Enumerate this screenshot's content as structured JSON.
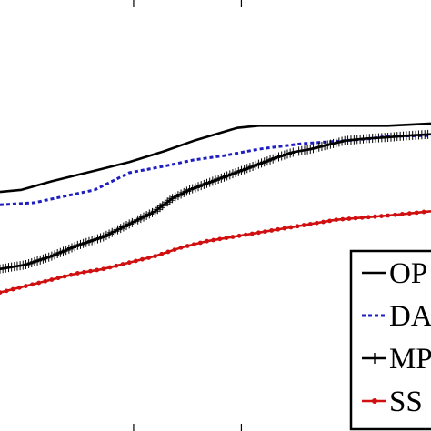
{
  "chart_data": {
    "type": "line",
    "title": "",
    "xlabel": "",
    "ylabel": "",
    "grid": false,
    "legend_placement": "bottom-right",
    "colors": {
      "OP": "#000000",
      "DA": "#1f1fbf",
      "MP": "#000000",
      "SS": "#d01010"
    },
    "series": [
      {
        "name": "OP",
        "marker": "none",
        "style": "solid",
        "x": [
          0,
          0.05,
          0.12,
          0.18,
          0.22,
          0.3,
          0.38,
          0.45,
          0.5,
          0.55,
          0.6,
          0.7,
          0.8,
          0.9,
          1.0
        ],
        "y": [
          0.555,
          0.56,
          0.58,
          0.595,
          0.605,
          0.625,
          0.65,
          0.675,
          0.69,
          0.705,
          0.71,
          0.71,
          0.71,
          0.71,
          0.715
        ]
      },
      {
        "name": "DA",
        "marker": "none",
        "style": "dotted",
        "x": [
          0,
          0.08,
          0.15,
          0.22,
          0.3,
          0.38,
          0.45,
          0.52,
          0.6,
          0.7,
          0.8,
          0.86,
          0.9,
          1.0
        ],
        "y": [
          0.525,
          0.53,
          0.545,
          0.56,
          0.6,
          0.615,
          0.63,
          0.64,
          0.655,
          0.668,
          0.675,
          0.68,
          0.685,
          0.687
        ]
      },
      {
        "name": "MP",
        "marker": "plus",
        "style": "solid",
        "x": [
          0,
          0.06,
          0.12,
          0.18,
          0.24,
          0.3,
          0.36,
          0.4,
          0.44,
          0.48,
          0.52,
          0.56,
          0.6,
          0.64,
          0.68,
          0.72,
          0.76,
          0.8,
          0.85,
          0.9,
          0.95,
          1.0
        ],
        "y": [
          0.375,
          0.385,
          0.405,
          0.43,
          0.45,
          0.48,
          0.51,
          0.54,
          0.56,
          0.575,
          0.59,
          0.605,
          0.62,
          0.635,
          0.648,
          0.655,
          0.665,
          0.675,
          0.68,
          0.683,
          0.687,
          0.69
        ]
      },
      {
        "name": "SS",
        "marker": "dot",
        "style": "solid",
        "x": [
          0,
          0.06,
          0.12,
          0.18,
          0.24,
          0.3,
          0.36,
          0.42,
          0.48,
          0.54,
          0.6,
          0.66,
          0.72,
          0.78,
          0.84,
          0.9,
          0.95,
          1.0
        ],
        "y": [
          0.32,
          0.335,
          0.35,
          0.365,
          0.375,
          0.39,
          0.405,
          0.425,
          0.44,
          0.45,
          0.46,
          0.47,
          0.48,
          0.49,
          0.495,
          0.5,
          0.505,
          0.51
        ]
      }
    ],
    "xlim": [
      0,
      1
    ],
    "ylim": [
      0,
      1
    ]
  }
}
